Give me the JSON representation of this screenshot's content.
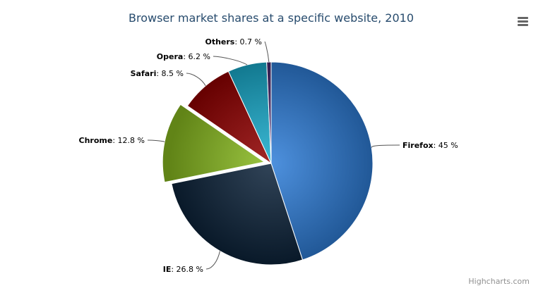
{
  "chart_data": {
    "type": "pie",
    "title": "Browser market shares at a specific website, 2010",
    "unit": "%",
    "slices": [
      {
        "name": "Firefox",
        "value": 45.0,
        "color": "#2f7ed8",
        "sliced": false
      },
      {
        "name": "IE",
        "value": 26.8,
        "color": "#0d233a",
        "sliced": false
      },
      {
        "name": "Chrome",
        "value": 12.8,
        "color": "#8bbc21",
        "sliced": true
      },
      {
        "name": "Safari",
        "value": 8.5,
        "color": "#910000",
        "sliced": false
      },
      {
        "name": "Opera",
        "value": 6.2,
        "color": "#1aadce",
        "sliced": false
      },
      {
        "name": "Others",
        "value": 0.7,
        "color": "#492970",
        "sliced": false
      }
    ]
  },
  "credits": "Highcharts.com",
  "menu_icon": "hamburger-menu-icon"
}
